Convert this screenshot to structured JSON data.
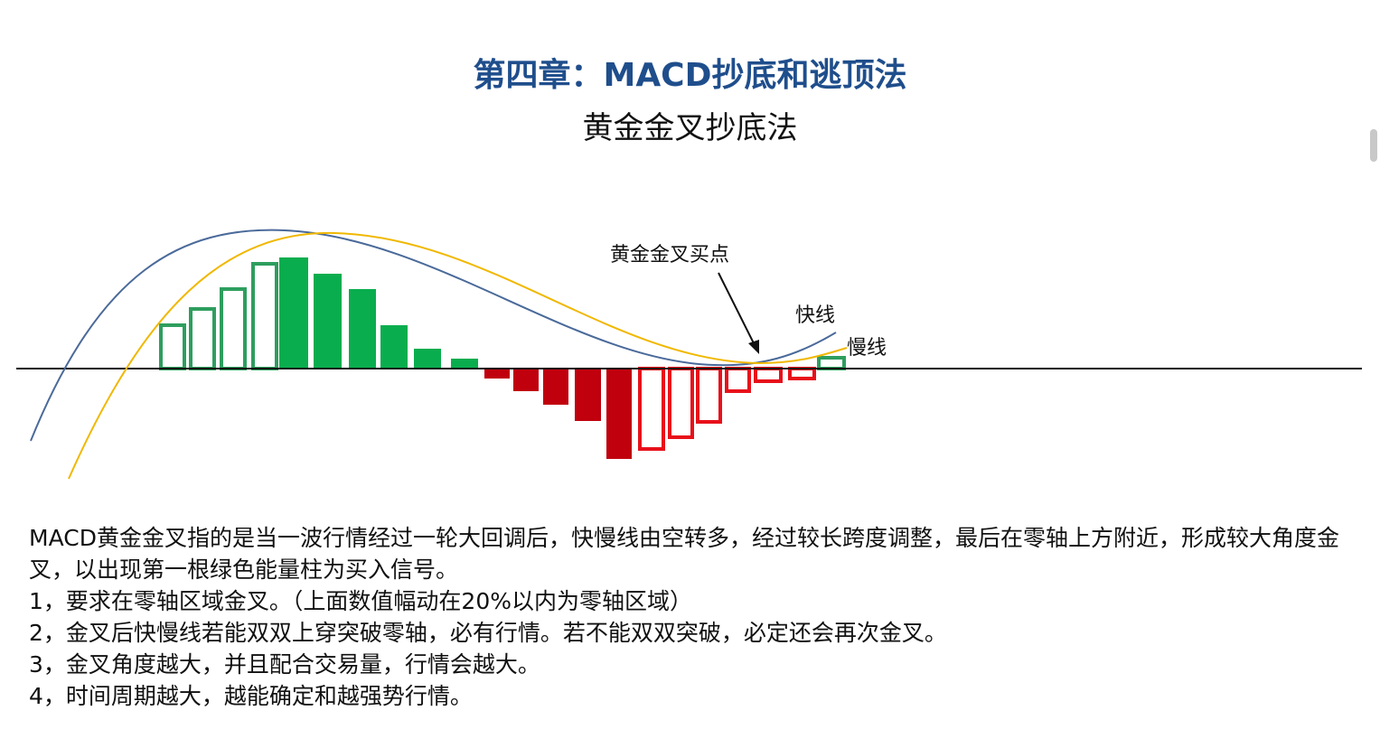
{
  "header": {
    "title": "第四章：MACD抄底和逃顶法",
    "subtitle": "黄金金叉抄底法"
  },
  "diagram": {
    "annotations": {
      "cross": "黄金金叉买点",
      "fast": "快线",
      "slow": "慢线"
    }
  },
  "body": {
    "intro": "MACD黄金金叉指的是当一波行情经过一轮大回调后，快慢线由空转多，经过较长跨度调整，最后在零轴上方附近，形成较大角度金叉，以出现第一根绿色能量柱为买入信号。",
    "items": [
      "1，要求在零轴区域金叉。（上面数值幅动在20%以内为零轴区域）",
      "2，金叉后快慢线若能双双上穿突破零轴，必有行情。若不能双双突破，必定还会再次金叉。",
      "3，金叉角度越大，并且配合交易量，行情会越大。",
      "4，时间周期越大，越能确定和越强势行情。"
    ]
  }
}
